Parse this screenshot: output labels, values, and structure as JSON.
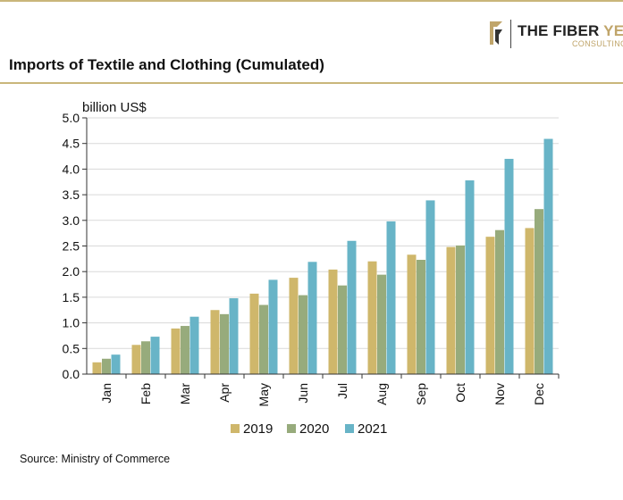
{
  "header": {
    "logo_dark": "THE FIBER",
    "logo_gold": "YEAR",
    "logo_sub": "CONSULTING",
    "title": "Imports of Textile and Clothing (Cumulated)"
  },
  "footer": {
    "source": "Source: Ministry of Commerce"
  },
  "colors": {
    "accent": "#c9b67a",
    "grid": "#d9d9d9"
  },
  "chart_data": {
    "type": "bar",
    "title": "Imports of Textile and Clothing (Cumulated)",
    "ylabel": "billion US$",
    "xlabel": "",
    "ylim": [
      0,
      5.0
    ],
    "yticks": [
      "0.0",
      "0.5",
      "1.0",
      "1.5",
      "2.0",
      "2.5",
      "3.0",
      "3.5",
      "4.0",
      "4.5",
      "5.0"
    ],
    "grid": true,
    "legend_position": "bottom",
    "categories": [
      "Jan",
      "Feb",
      "Mar",
      "Apr",
      "May",
      "Jun",
      "Jul",
      "Aug",
      "Sep",
      "Oct",
      "Nov",
      "Dec"
    ],
    "series": [
      {
        "name": "2019",
        "color": "#cfb76b",
        "values": [
          0.23,
          0.57,
          0.89,
          1.25,
          1.57,
          1.88,
          2.04,
          2.2,
          2.33,
          2.48,
          2.68,
          2.85
        ]
      },
      {
        "name": "2020",
        "color": "#97ab7c",
        "values": [
          0.3,
          0.64,
          0.94,
          1.17,
          1.35,
          1.54,
          1.73,
          1.94,
          2.23,
          2.51,
          2.81,
          3.22
        ]
      },
      {
        "name": "2021",
        "color": "#68b4c7",
        "values": [
          0.38,
          0.73,
          1.12,
          1.48,
          1.84,
          2.19,
          2.6,
          2.98,
          3.39,
          3.78,
          4.2,
          4.59
        ]
      }
    ]
  }
}
